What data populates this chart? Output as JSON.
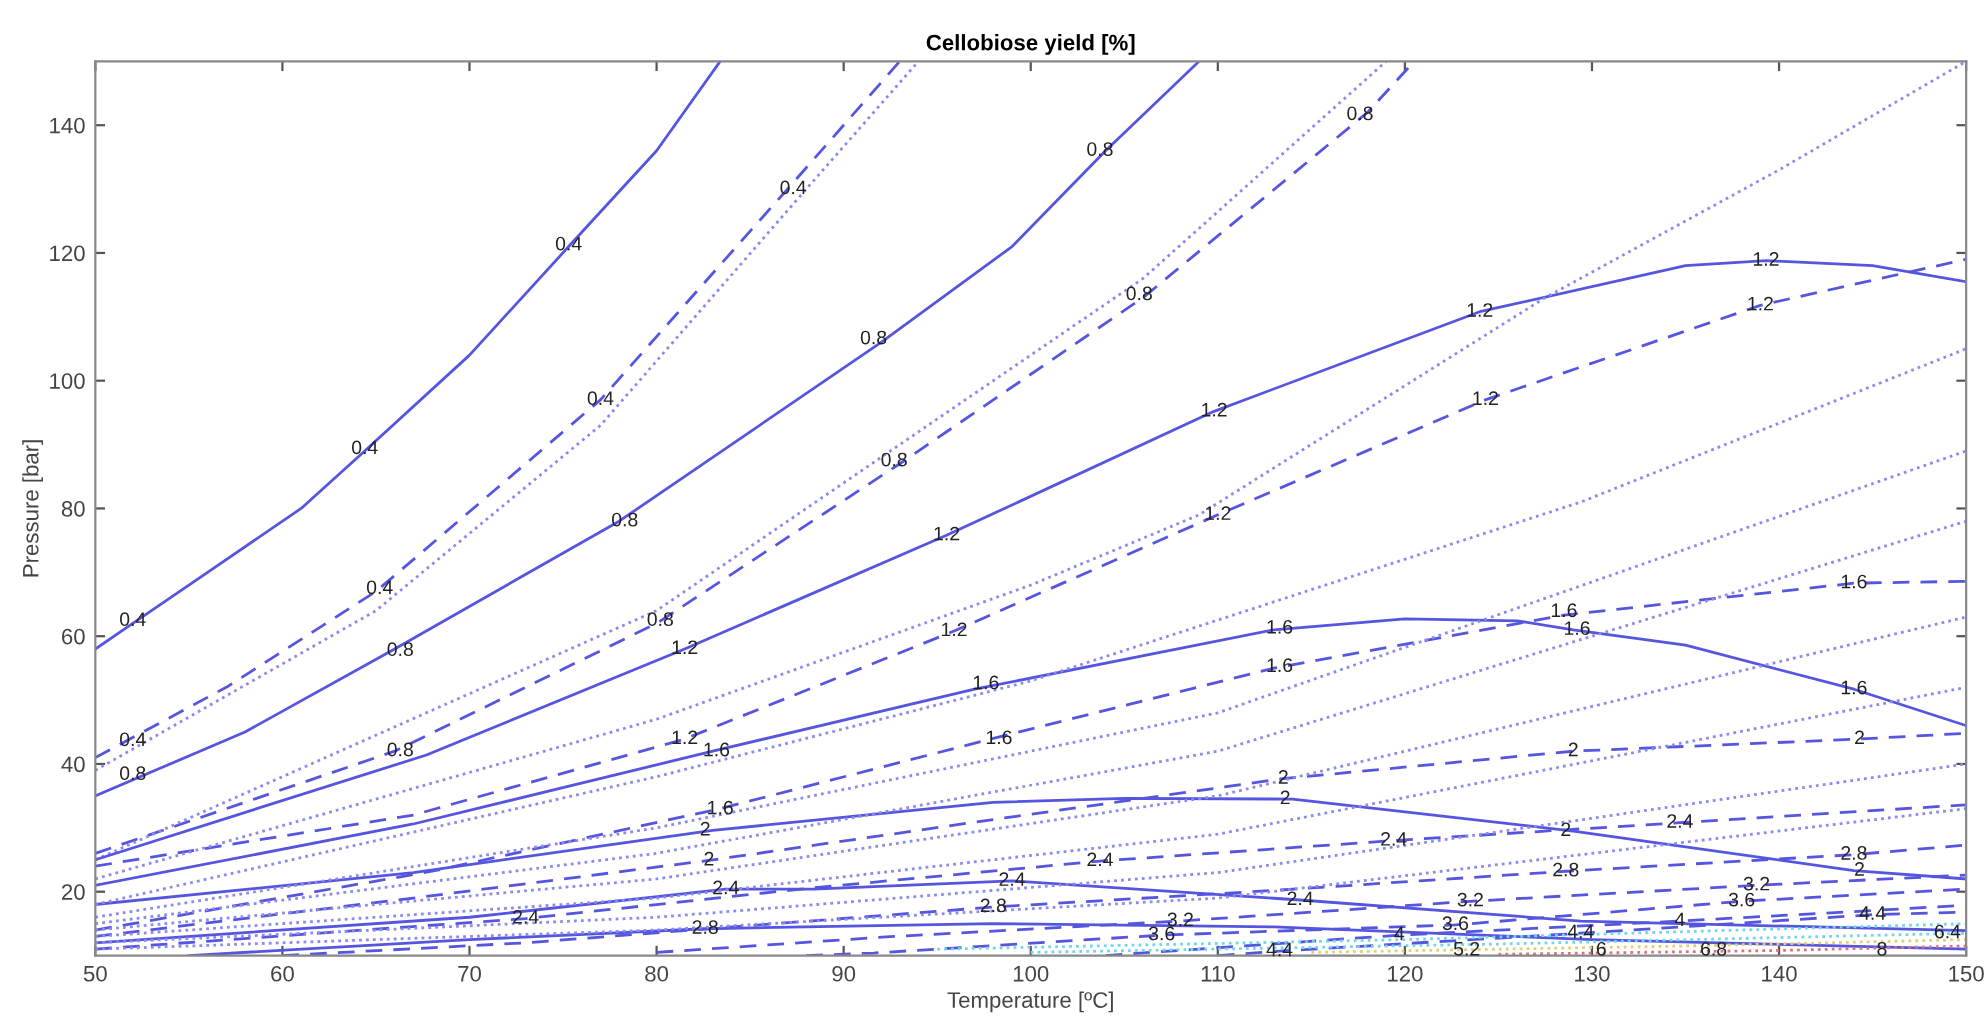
{
  "chart_data": {
    "type": "line",
    "title": "Cellobiose yield [%]",
    "xlabel": "Temperature [ºC]",
    "ylabel": "Pressure [bar]",
    "xlim": [
      50,
      150
    ],
    "xticks": [
      50,
      60,
      70,
      80,
      90,
      100,
      110,
      120,
      130,
      140,
      150
    ],
    "ylim": [
      10,
      150
    ],
    "yticks": [
      20,
      40,
      60,
      80,
      100,
      120,
      140
    ],
    "grid": false,
    "series": [
      {
        "color": "#5555e0",
        "line_style": "solid",
        "x": [
          50,
          52,
          56,
          61,
          64.4,
          70,
          75.3,
          80,
          83.4
        ],
        "values": [
          58,
          62,
          70,
          80,
          89,
          104,
          121,
          136,
          150
        ]
      },
      {
        "color": "#5555e0",
        "line_style": "dashed",
        "x": [
          50,
          57,
          65,
          77,
          87,
          93
        ],
        "values": [
          41,
          52,
          67,
          97,
          130,
          150
        ]
      },
      {
        "color": "#8a8af0",
        "line_style": "dotted",
        "x": [
          50,
          65,
          77,
          88,
          94
        ],
        "values": [
          39,
          64,
          93,
          130,
          150
        ]
      },
      {
        "color": "#5555e0",
        "line_style": "solid",
        "x": [
          50,
          58,
          66,
          78,
          92,
          99,
          104,
          109
        ],
        "values": [
          35,
          45,
          58,
          78,
          106,
          121,
          136,
          150
        ]
      },
      {
        "color": "#5555e0",
        "line_style": "dashed",
        "x": [
          50,
          66,
          80,
          93,
          106,
          118,
          120.5
        ],
        "values": [
          26,
          42,
          62,
          87,
          113,
          142,
          150
        ]
      },
      {
        "color": "#8a8af0",
        "line_style": "dotted",
        "x": [
          50,
          80,
          106,
          119
        ],
        "values": [
          25,
          64,
          116,
          150
        ]
      },
      {
        "color": "#5555e0",
        "line_style": "solid",
        "x": [
          50,
          67.7,
          81.5,
          95.5,
          109.8,
          124,
          135,
          139.3,
          145,
          150
        ],
        "values": [
          25,
          41.4,
          58,
          75.8,
          95.2,
          110.8,
          118,
          118.8,
          118,
          115.5
        ]
      },
      {
        "color": "#5555e0",
        "line_style": "dashed",
        "x": [
          50,
          67,
          81.5,
          95.9,
          110,
          124.3,
          139,
          150
        ],
        "values": [
          24,
          32,
          43.9,
          60.8,
          79,
          97,
          111.8,
          119
        ]
      },
      {
        "color": "#5555e0",
        "line_style": "solid",
        "x": [
          50,
          67,
          83,
          97,
          113,
          120,
          126,
          129,
          135,
          144,
          150
        ],
        "values": [
          21,
          30.6,
          42,
          51.7,
          61,
          62.7,
          62.4,
          61,
          58.6,
          51.7,
          46
        ]
      },
      {
        "color": "#5555e0",
        "line_style": "dashed",
        "x": [
          50,
          52,
          68,
          83.4,
          98,
          113,
          128.5,
          144,
          150
        ],
        "values": [
          14,
          15,
          23.2,
          33,
          44,
          55,
          63.3,
          68.3,
          68.6
        ]
      },
      {
        "color": "#5555e0",
        "line_style": "solid",
        "x": [
          50,
          67,
          83,
          98,
          105,
          114,
          129,
          144,
          150
        ],
        "values": [
          18,
          23,
          29.6,
          34,
          34.6,
          34.5,
          29.5,
          23.3,
          22
        ]
      },
      {
        "color": "#5555e0",
        "line_style": "dashed",
        "x": [
          50,
          67,
          82.8,
          98,
          113.5,
          129,
          144.3,
          150
        ],
        "values": [
          13,
          19,
          24.9,
          31.3,
          37.7,
          42,
          43.9,
          44.8
        ]
      },
      {
        "color": "#5555e0",
        "line_style": "solid",
        "x": [
          50,
          70,
          83.7,
          88.4,
          99,
          114.4,
          129.4,
          150
        ],
        "values": [
          12,
          16,
          20.4,
          20.4,
          21.7,
          18.7,
          15.4,
          13.9
        ]
      },
      {
        "color": "#5555e0",
        "line_style": "dashed",
        "x": [
          50,
          73,
          88,
          103.7,
          119.4,
          134.7,
          150
        ],
        "values": [
          11,
          15.8,
          20.5,
          24.8,
          28,
          30.8,
          33.6
        ]
      },
      {
        "color": "#5555e0",
        "line_style": "solid",
        "x": [
          55,
          70,
          82.6,
          98,
          113,
          130,
          150
        ],
        "values": [
          10,
          12.5,
          14.2,
          15,
          14.5,
          12.5,
          11
        ]
      },
      {
        "color": "#5555e0",
        "line_style": "dashed",
        "x": [
          60,
          73,
          98,
          113,
          128.6,
          144,
          150
        ],
        "values": [
          10,
          12,
          17.6,
          20.2,
          23.2,
          25.8,
          27.3
        ]
      },
      {
        "color": "#5555e0",
        "line_style": "dashed",
        "x": [
          80,
          92.7,
          108,
          123.5,
          138.8,
          150
        ],
        "values": [
          10.5,
          13,
          15.4,
          18.5,
          21,
          22.6
        ]
      },
      {
        "color": "#5555e0",
        "line_style": "dashed",
        "x": [
          88,
          91.6,
          107,
          122.7,
          138,
          150
        ],
        "values": [
          10,
          10.4,
          13.2,
          14.8,
          18.5,
          20.4
        ]
      },
      {
        "color": "#5555e0",
        "line_style": "dashed",
        "x": [
          104,
          119.7,
          134.7,
          144.7,
          150
        ],
        "values": [
          10,
          13.2,
          15.4,
          17,
          17.9
        ]
      },
      {
        "color": "#5555e0",
        "line_style": "dashed",
        "x": [
          110,
          113.3,
          129.4,
          145,
          150
        ],
        "values": [
          10,
          10.7,
          13.5,
          16.4,
          16.8
        ]
      },
      {
        "color": "#8a8af0",
        "line_style": "dotted",
        "x": [
          50,
          80,
          100,
          109,
          127.5,
          140,
          150
        ],
        "values": [
          22,
          47,
          68,
          79,
          113,
          133,
          150
        ]
      },
      {
        "color": "#8a8af0",
        "line_style": "dotted",
        "x": [
          50,
          80,
          100,
          129.4,
          150
        ],
        "values": [
          18,
          38,
          53,
          81,
          105
        ]
      },
      {
        "color": "#8a8af0",
        "line_style": "dotted",
        "x": [
          50,
          80,
          110,
          150
        ],
        "values": [
          16,
          30,
          48,
          89
        ]
      },
      {
        "color": "#8a8af0",
        "line_style": "dotted",
        "x": [
          50,
          80,
          110,
          150
        ],
        "values": [
          15,
          26,
          42,
          78
        ]
      },
      {
        "color": "#8a8af0",
        "line_style": "dotted",
        "x": [
          50,
          80,
          110,
          150
        ],
        "values": [
          14,
          22,
          35,
          63
        ]
      },
      {
        "color": "#8a8af0",
        "line_style": "dotted",
        "x": [
          50,
          80,
          110,
          150
        ],
        "values": [
          13,
          19,
          29,
          52
        ]
      },
      {
        "color": "#8a8af0",
        "line_style": "dotted",
        "x": [
          50,
          80,
          110,
          150
        ],
        "values": [
          12,
          16,
          23,
          40
        ]
      },
      {
        "color": "#8a8af0",
        "line_style": "dotted",
        "x": [
          50,
          80,
          110,
          150
        ],
        "values": [
          11,
          14,
          19,
          33
        ]
      },
      {
        "color": "#6fd6ee",
        "line_style": "dotted",
        "x": [
          95,
          120,
          150
        ],
        "values": [
          11,
          12.5,
          15
        ]
      },
      {
        "color": "#6fd6ee",
        "line_style": "dotted",
        "x": [
          100,
          125,
          150
        ],
        "values": [
          10.5,
          11.8,
          13.5
        ]
      },
      {
        "color": "#e0d070",
        "line_style": "dotted",
        "x": [
          115,
          135,
          150
        ],
        "values": [
          10.5,
          11.5,
          12.5
        ]
      },
      {
        "color": "#e07080",
        "line_style": "dotted",
        "x": [
          125,
          140,
          150
        ],
        "values": [
          10.2,
          10.8,
          11.5
        ]
      }
    ],
    "annotations": [
      {
        "text": "0.4",
        "x": 52,
        "y": 62.4
      },
      {
        "text": "0.4",
        "x": 64.4,
        "y": 89.3
      },
      {
        "text": "0.4",
        "x": 75.3,
        "y": 121.2
      },
      {
        "text": "0.4",
        "x": 52,
        "y": 43.6
      },
      {
        "text": "0.4",
        "x": 65.2,
        "y": 67.4
      },
      {
        "text": "0.4",
        "x": 77,
        "y": 97
      },
      {
        "text": "0.4",
        "x": 87.3,
        "y": 130
      },
      {
        "text": "0.8",
        "x": 52,
        "y": 38.3
      },
      {
        "text": "0.8",
        "x": 66.3,
        "y": 57.7
      },
      {
        "text": "0.8",
        "x": 78.3,
        "y": 78
      },
      {
        "text": "0.8",
        "x": 91.6,
        "y": 106.5
      },
      {
        "text": "0.8",
        "x": 103.7,
        "y": 136
      },
      {
        "text": "0.8",
        "x": 66.3,
        "y": 42
      },
      {
        "text": "0.8",
        "x": 80.2,
        "y": 62.4
      },
      {
        "text": "0.8",
        "x": 92.7,
        "y": 87.4
      },
      {
        "text": "0.8",
        "x": 105.8,
        "y": 113.4
      },
      {
        "text": "0.8",
        "x": 117.6,
        "y": 141.6
      },
      {
        "text": "1.2",
        "x": 81.5,
        "y": 58
      },
      {
        "text": "1.2",
        "x": 95.5,
        "y": 75.8
      },
      {
        "text": "1.2",
        "x": 109.8,
        "y": 95.2
      },
      {
        "text": "1.2",
        "x": 124,
        "y": 110.8
      },
      {
        "text": "1.2",
        "x": 139.3,
        "y": 118.8
      },
      {
        "text": "1.2",
        "x": 81.5,
        "y": 43.9
      },
      {
        "text": "1.2",
        "x": 95.9,
        "y": 60.8
      },
      {
        "text": "1.2",
        "x": 110,
        "y": 79
      },
      {
        "text": "1.2",
        "x": 124.3,
        "y": 97
      },
      {
        "text": "1.2",
        "x": 139,
        "y": 111.8
      },
      {
        "text": "1.6",
        "x": 83.2,
        "y": 42
      },
      {
        "text": "1.6",
        "x": 97.6,
        "y": 52.5
      },
      {
        "text": "1.6",
        "x": 113.3,
        "y": 61.2
      },
      {
        "text": "1.6",
        "x": 129.2,
        "y": 61
      },
      {
        "text": "1.6",
        "x": 144,
        "y": 51.7
      },
      {
        "text": "1.6",
        "x": 83.4,
        "y": 32.9
      },
      {
        "text": "1.6",
        "x": 98.3,
        "y": 43.9
      },
      {
        "text": "1.6",
        "x": 113.3,
        "y": 55.2
      },
      {
        "text": "1.6",
        "x": 128.5,
        "y": 63.8
      },
      {
        "text": "1.6",
        "x": 144,
        "y": 68.3
      },
      {
        "text": "2",
        "x": 82.6,
        "y": 29.6
      },
      {
        "text": "2",
        "x": 113.6,
        "y": 34.5
      },
      {
        "text": "2",
        "x": 128.6,
        "y": 29.5
      },
      {
        "text": "2",
        "x": 144.3,
        "y": 23.3
      },
      {
        "text": "2",
        "x": 82.8,
        "y": 24.9
      },
      {
        "text": "2",
        "x": 113.5,
        "y": 37.7
      },
      {
        "text": "2",
        "x": 129,
        "y": 42
      },
      {
        "text": "2",
        "x": 144.3,
        "y": 43.9
      },
      {
        "text": "2.4",
        "x": 83.7,
        "y": 20.4
      },
      {
        "text": "2.4",
        "x": 99,
        "y": 21.7
      },
      {
        "text": "2.4",
        "x": 114.4,
        "y": 18.7
      },
      {
        "text": "2.4",
        "x": 73,
        "y": 15.8
      },
      {
        "text": "2.4",
        "x": 103.7,
        "y": 24.8
      },
      {
        "text": "2.4",
        "x": 119.4,
        "y": 28
      },
      {
        "text": "2.4",
        "x": 134.7,
        "y": 30.8
      },
      {
        "text": "2.8",
        "x": 82.6,
        "y": 14.2
      },
      {
        "text": "2.8",
        "x": 98,
        "y": 17.6
      },
      {
        "text": "2.8",
        "x": 128.6,
        "y": 23.2
      },
      {
        "text": "2.8",
        "x": 144,
        "y": 25.8
      },
      {
        "text": "3.2",
        "x": 108,
        "y": 15.4
      },
      {
        "text": "3.2",
        "x": 123.5,
        "y": 18.5
      },
      {
        "text": "3.2",
        "x": 138.8,
        "y": 21
      },
      {
        "text": "3.6",
        "x": 107,
        "y": 13.2
      },
      {
        "text": "3.6",
        "x": 122.7,
        "y": 14.8
      },
      {
        "text": "3.6",
        "x": 138,
        "y": 18.5
      },
      {
        "text": "4",
        "x": 119.7,
        "y": 13.2
      },
      {
        "text": "4",
        "x": 134.7,
        "y": 15.4
      },
      {
        "text": "4.4",
        "x": 113.3,
        "y": 10.7
      },
      {
        "text": "4.4",
        "x": 129.4,
        "y": 13.5
      },
      {
        "text": "4.4",
        "x": 145,
        "y": 16.4
      },
      {
        "text": "5.2",
        "x": 123.3,
        "y": 10.8
      },
      {
        "text": "6",
        "x": 130.5,
        "y": 10.8
      },
      {
        "text": "6.8",
        "x": 136.5,
        "y": 10.8
      },
      {
        "text": "8",
        "x": 145.5,
        "y": 10.8
      },
      {
        "text": "6.4",
        "x": 149,
        "y": 13.5
      }
    ]
  }
}
